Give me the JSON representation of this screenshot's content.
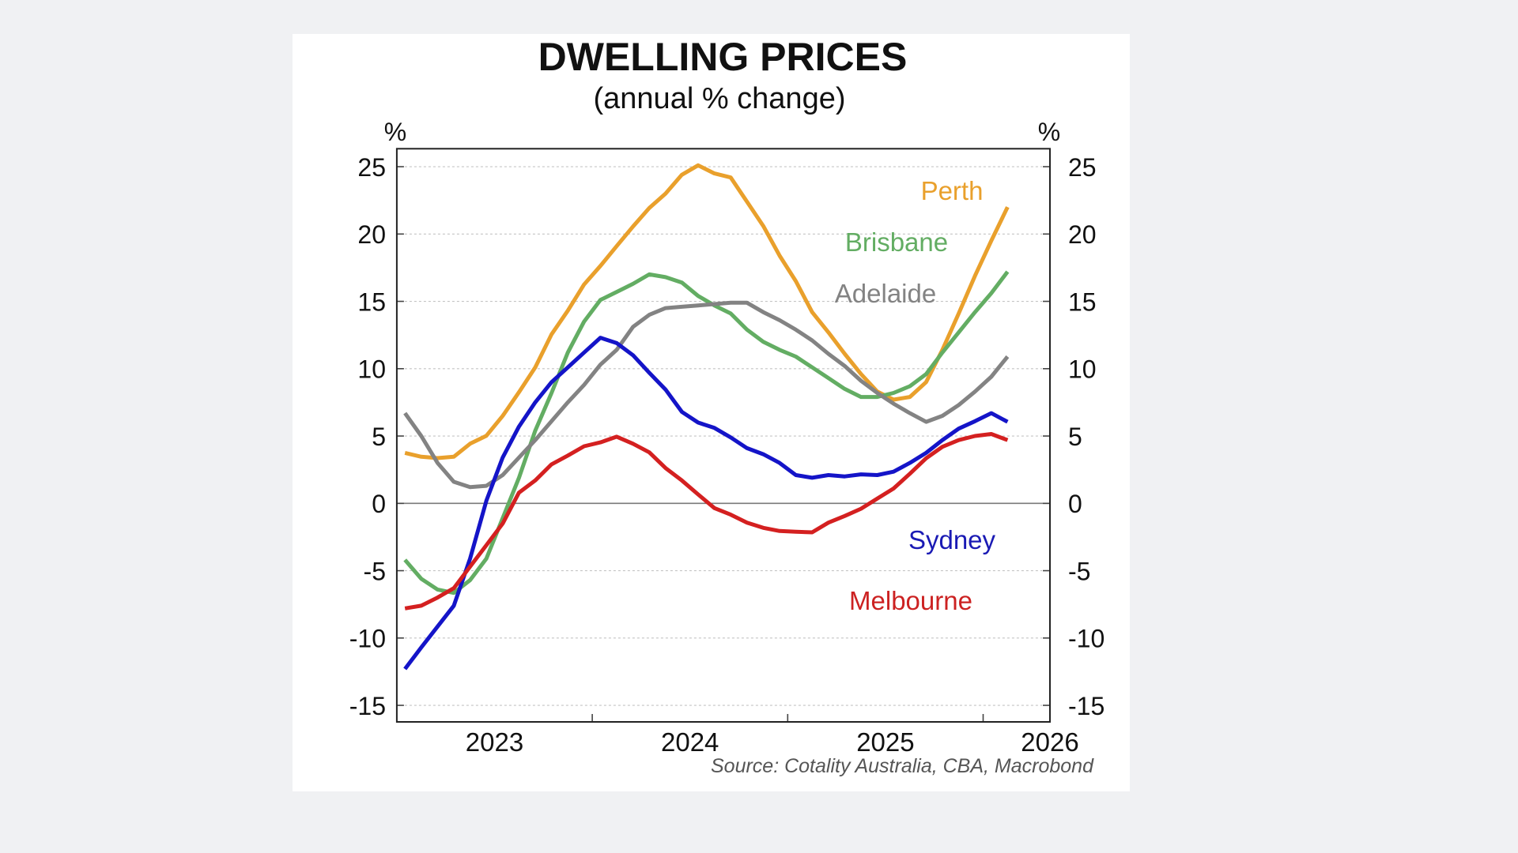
{
  "chart_data": {
    "type": "line",
    "title": "DWELLING PRICES",
    "subtitle": "(annual % change)",
    "xlabel": "",
    "ylabel": "%",
    "ylabel_right": "%",
    "source": "Source: Cotality Australia, CBA, Macrobond",
    "x_unit": "month",
    "x": [
      "2023-01",
      "2023-02",
      "2023-03",
      "2023-04",
      "2023-05",
      "2023-06",
      "2023-07",
      "2023-08",
      "2023-09",
      "2023-10",
      "2023-11",
      "2023-12",
      "2024-01",
      "2024-02",
      "2024-03",
      "2024-04",
      "2024-05",
      "2024-06",
      "2024-07",
      "2024-08",
      "2024-09",
      "2024-10",
      "2024-11",
      "2024-12",
      "2025-01",
      "2025-02",
      "2025-03",
      "2025-04",
      "2025-05",
      "2025-06",
      "2025-07",
      "2025-08",
      "2025-09",
      "2025-10",
      "2025-11",
      "2025-12",
      "2026-01",
      "2026-02"
    ],
    "xlim": [
      "2023-01",
      "2026-05"
    ],
    "x_ticks": [
      "2024-01",
      "2025-01",
      "2026-01"
    ],
    "x_tick_labels": [
      {
        "label": "2023",
        "year": 2023
      },
      {
        "label": "2024",
        "year": 2024
      },
      {
        "label": "2025",
        "year": 2025
      },
      {
        "label": "2026",
        "year": 2026
      }
    ],
    "ylim": [
      -16.3,
      26.3
    ],
    "y_ticks": [
      25,
      20,
      15,
      10,
      5,
      0,
      -5,
      -10,
      -15
    ],
    "y_tick_labels": [
      "25",
      "20",
      "15",
      "10",
      "5",
      "0",
      "-5",
      "-10",
      "-15"
    ],
    "dual_y_axis": true,
    "grid": true,
    "legend": "inline-labels",
    "series": [
      {
        "name": "Perth",
        "color": "#e9a02c",
        "values": [
          3.75,
          3.46,
          3.36,
          3.46,
          4.43,
          5.02,
          6.49,
          8.25,
          10.1,
          12.55,
          14.31,
          16.26,
          17.63,
          19.1,
          20.56,
          21.93,
          23.0,
          24.4,
          25.1,
          24.5,
          24.2,
          22.4,
          20.6,
          18.4,
          16.5,
          14.2,
          12.7,
          11.1,
          9.6,
          8.3,
          7.7,
          7.9,
          9.0,
          11.4,
          14.1,
          16.9,
          19.5,
          22.0
        ]
      },
      {
        "name": "Brisbane",
        "color": "#63ad63",
        "values": [
          -4.2,
          -5.6,
          -6.4,
          -6.65,
          -5.7,
          -4.1,
          -1.1,
          1.9,
          5.4,
          8.2,
          11.2,
          13.5,
          15.1,
          15.7,
          16.3,
          17.0,
          16.8,
          16.4,
          15.4,
          14.7,
          14.1,
          12.9,
          12.0,
          11.4,
          10.9,
          10.1,
          9.3,
          8.5,
          7.9,
          7.9,
          8.2,
          8.7,
          9.6,
          11.2,
          12.7,
          14.2,
          15.6,
          17.2
        ]
      },
      {
        "name": "Adelaide",
        "color": "#838383",
        "values": [
          6.7,
          5.0,
          3.0,
          1.6,
          1.2,
          1.3,
          2.1,
          3.4,
          4.7,
          6.1,
          7.5,
          8.8,
          10.3,
          11.4,
          13.1,
          14.0,
          14.5,
          14.6,
          14.7,
          14.8,
          14.9,
          14.9,
          14.2,
          13.6,
          12.9,
          12.1,
          11.1,
          10.2,
          9.1,
          8.2,
          7.4,
          6.7,
          6.05,
          6.5,
          7.3,
          8.3,
          9.4,
          10.9
        ]
      },
      {
        "name": "Sydney",
        "color": "#1414c8",
        "values": [
          -12.3,
          -10.7,
          -9.15,
          -7.6,
          -4.1,
          0.2,
          3.4,
          5.7,
          7.5,
          9.0,
          10.1,
          11.2,
          12.3,
          11.9,
          11.0,
          9.7,
          8.45,
          6.8,
          6.0,
          5.6,
          4.9,
          4.1,
          3.65,
          3.0,
          2.1,
          1.9,
          2.1,
          2.0,
          2.15,
          2.1,
          2.35,
          3.0,
          3.75,
          4.7,
          5.55,
          6.1,
          6.7,
          6.05
        ]
      },
      {
        "name": "Melbourne",
        "color": "#d42020",
        "values": [
          -7.8,
          -7.6,
          -7.0,
          -6.3,
          -4.7,
          -3.1,
          -1.5,
          0.8,
          1.7,
          2.9,
          3.55,
          4.24,
          4.53,
          4.95,
          4.43,
          3.79,
          2.62,
          1.7,
          0.66,
          -0.35,
          -0.84,
          -1.43,
          -1.82,
          -2.05,
          -2.11,
          -2.15,
          -1.43,
          -0.94,
          -0.4,
          0.35,
          1.1,
          2.2,
          3.35,
          4.2,
          4.7,
          5.0,
          5.15,
          4.7
        ]
      }
    ],
    "series_label_colors": {
      "Perth": "#e9a02c",
      "Brisbane": "#63ad63",
      "Adelaide": "#838383",
      "Sydney": "#1a1ab4",
      "Melbourne": "#cc2222"
    }
  }
}
